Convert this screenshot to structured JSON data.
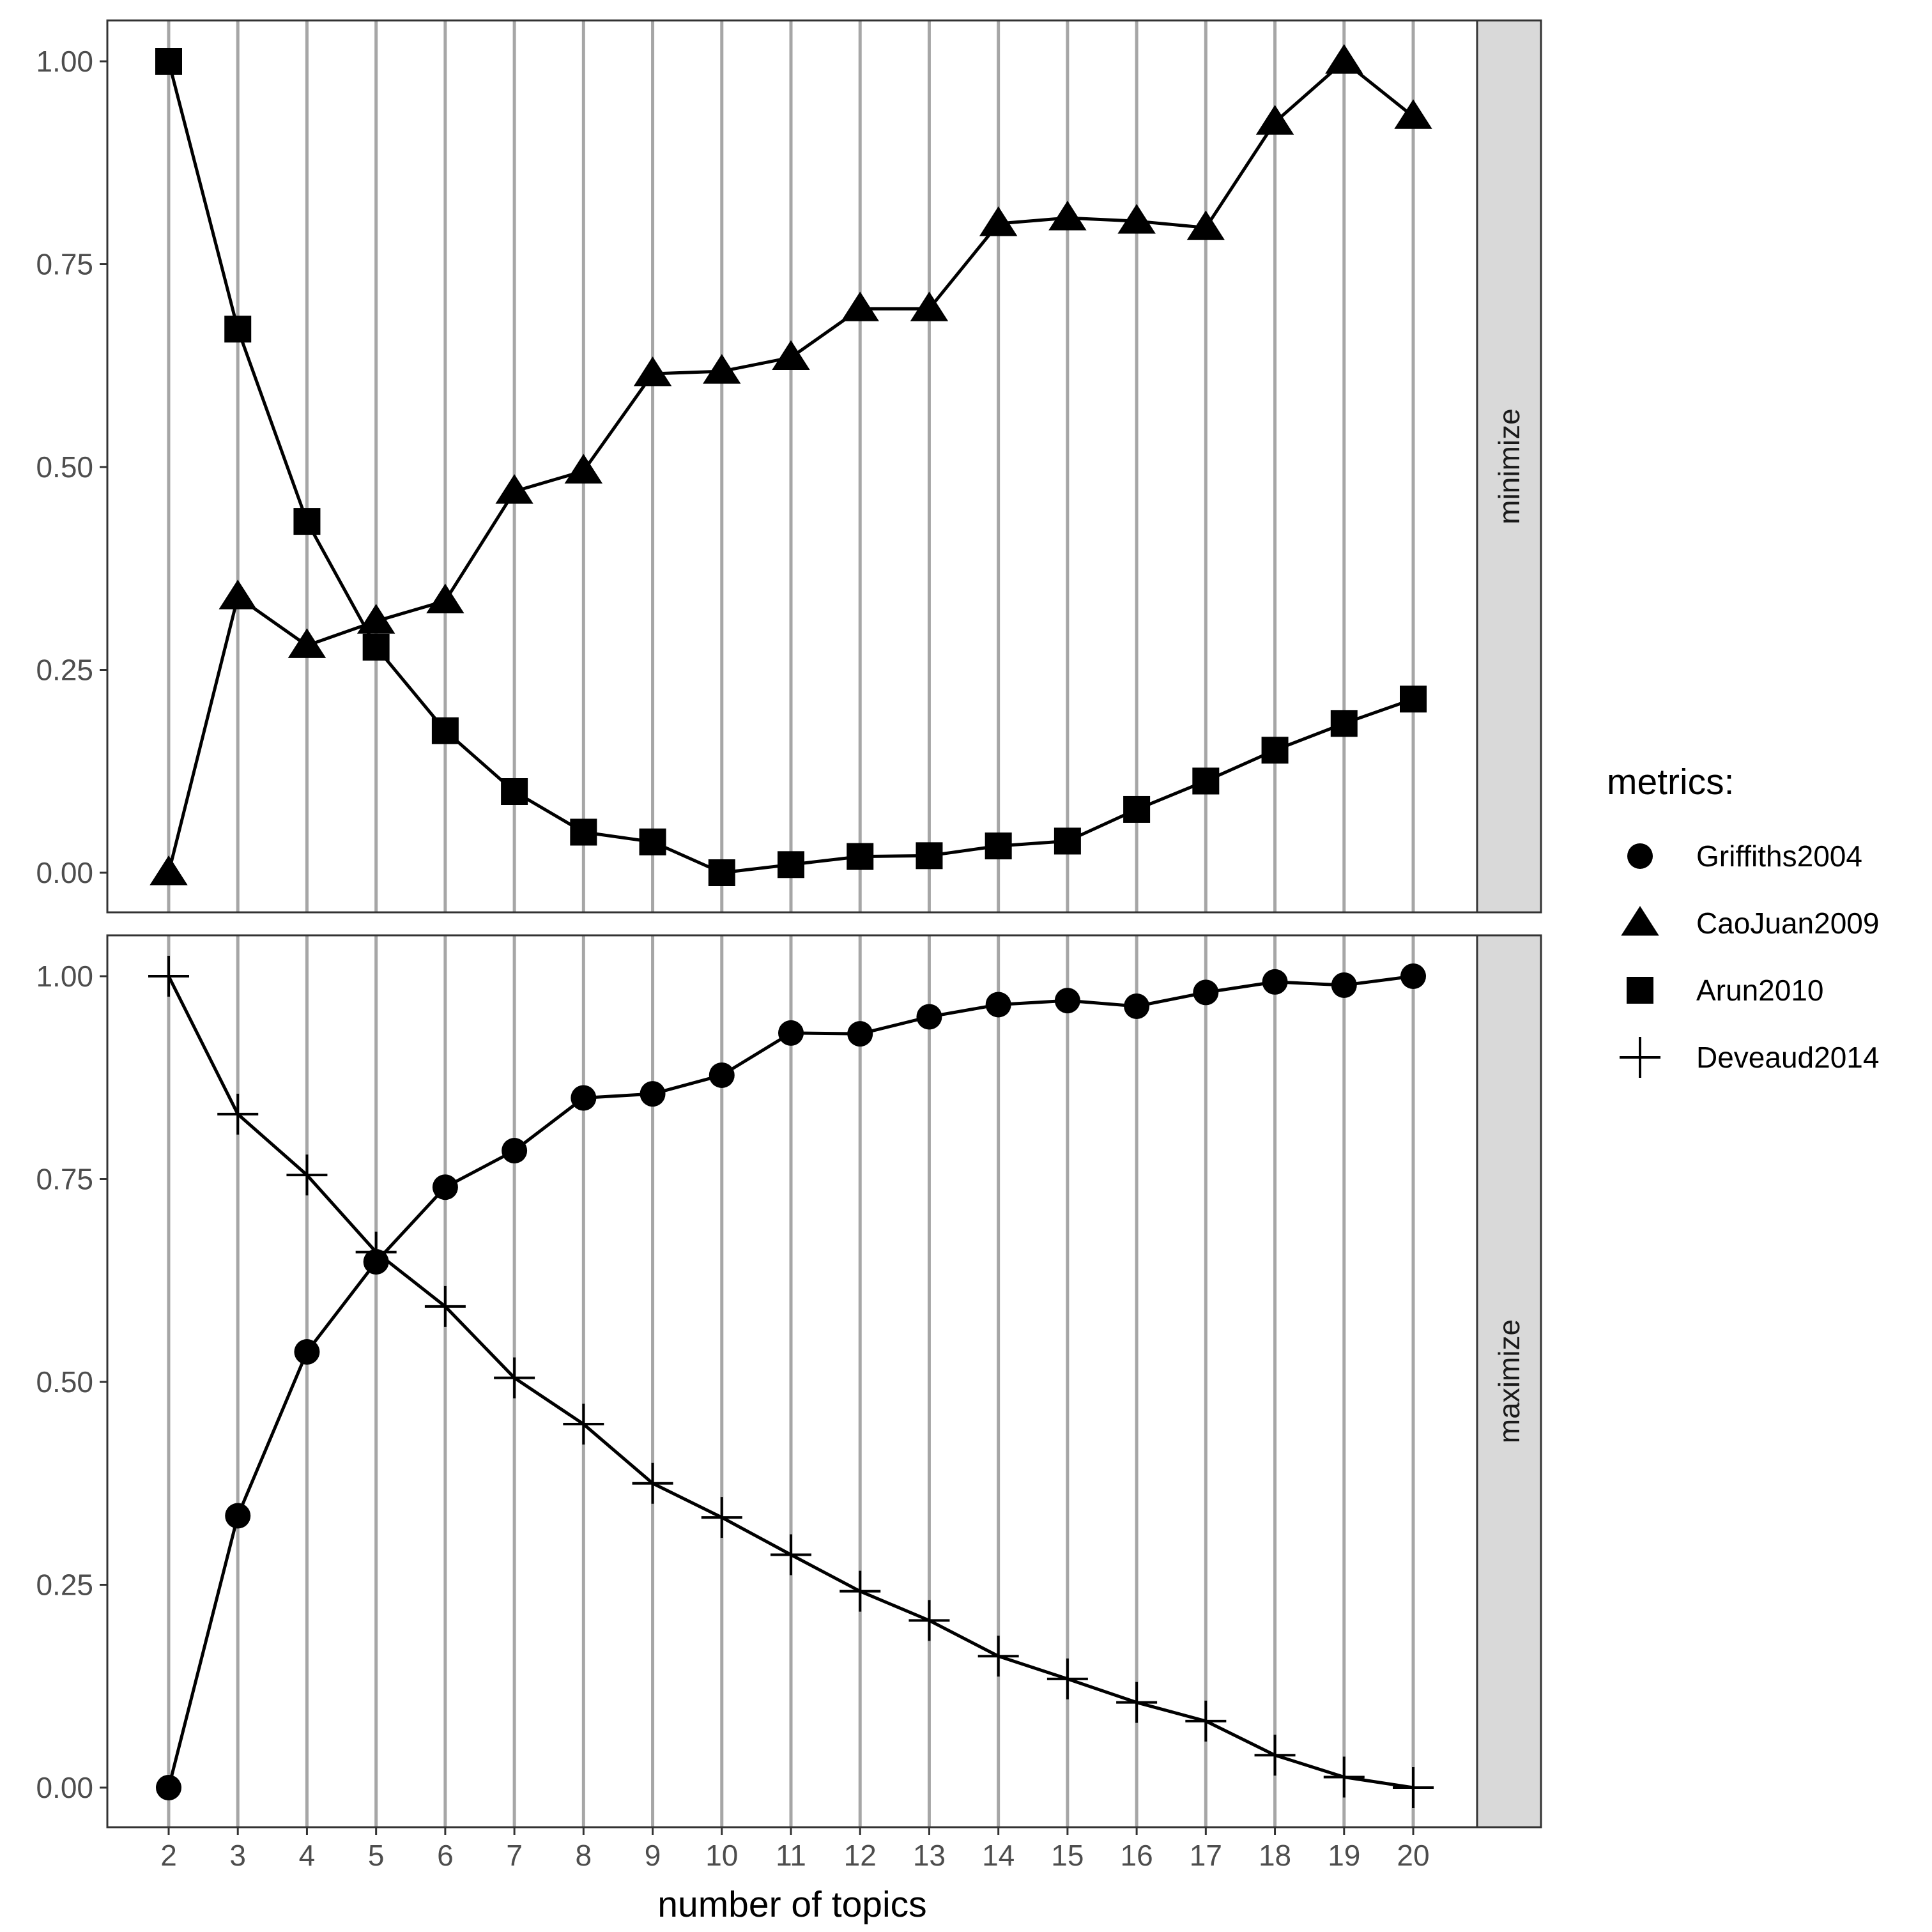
{
  "chart_data": {
    "type": "line",
    "xlabel": "number of topics",
    "x": [
      2,
      3,
      4,
      5,
      6,
      7,
      8,
      9,
      10,
      11,
      12,
      13,
      14,
      15,
      16,
      17,
      18,
      19,
      20
    ],
    "ylim": [
      0,
      1
    ],
    "yticks": [
      "0.00",
      "0.25",
      "0.50",
      "0.75",
      "1.00"
    ],
    "legend": {
      "title": "metrics:",
      "position": "right",
      "entries": [
        {
          "name": "Griffiths2004",
          "shape": "circle"
        },
        {
          "name": "CaoJuan2009",
          "shape": "triangle"
        },
        {
          "name": "Arun2010",
          "shape": "square"
        },
        {
          "name": "Deveaud2014",
          "shape": "plus"
        }
      ]
    },
    "grid": "vertical major lines at each x",
    "panels": [
      {
        "strip": "minimize",
        "series": [
          {
            "name": "CaoJuan2009",
            "shape": "triangle",
            "values": [
              0.0,
              0.34,
              0.28,
              0.31,
              0.335,
              0.47,
              0.495,
              0.615,
              0.618,
              0.635,
              0.695,
              0.695,
              0.8,
              0.807,
              0.803,
              0.795,
              0.925,
              1.0,
              0.932
            ]
          },
          {
            "name": "Arun2010",
            "shape": "square",
            "values": [
              1.0,
              0.67,
              0.433,
              0.278,
              0.175,
              0.1,
              0.05,
              0.038,
              0.0,
              0.01,
              0.02,
              0.021,
              0.033,
              0.039,
              0.078,
              0.113,
              0.151,
              0.184,
              0.214
            ]
          }
        ]
      },
      {
        "strip": "maximize",
        "series": [
          {
            "name": "Griffiths2004",
            "shape": "circle",
            "values": [
              0.0,
              0.335,
              0.537,
              0.648,
              0.74,
              0.785,
              0.85,
              0.855,
              0.878,
              0.93,
              0.929,
              0.95,
              0.965,
              0.97,
              0.963,
              0.98,
              0.993,
              0.989,
              1.0
            ]
          },
          {
            "name": "Deveaud2014",
            "shape": "plus",
            "values": [
              1.0,
              0.83,
              0.755,
              0.66,
              0.593,
              0.505,
              0.448,
              0.375,
              0.333,
              0.287,
              0.242,
              0.206,
              0.162,
              0.134,
              0.105,
              0.082,
              0.04,
              0.013,
              0.0
            ]
          }
        ]
      }
    ]
  }
}
